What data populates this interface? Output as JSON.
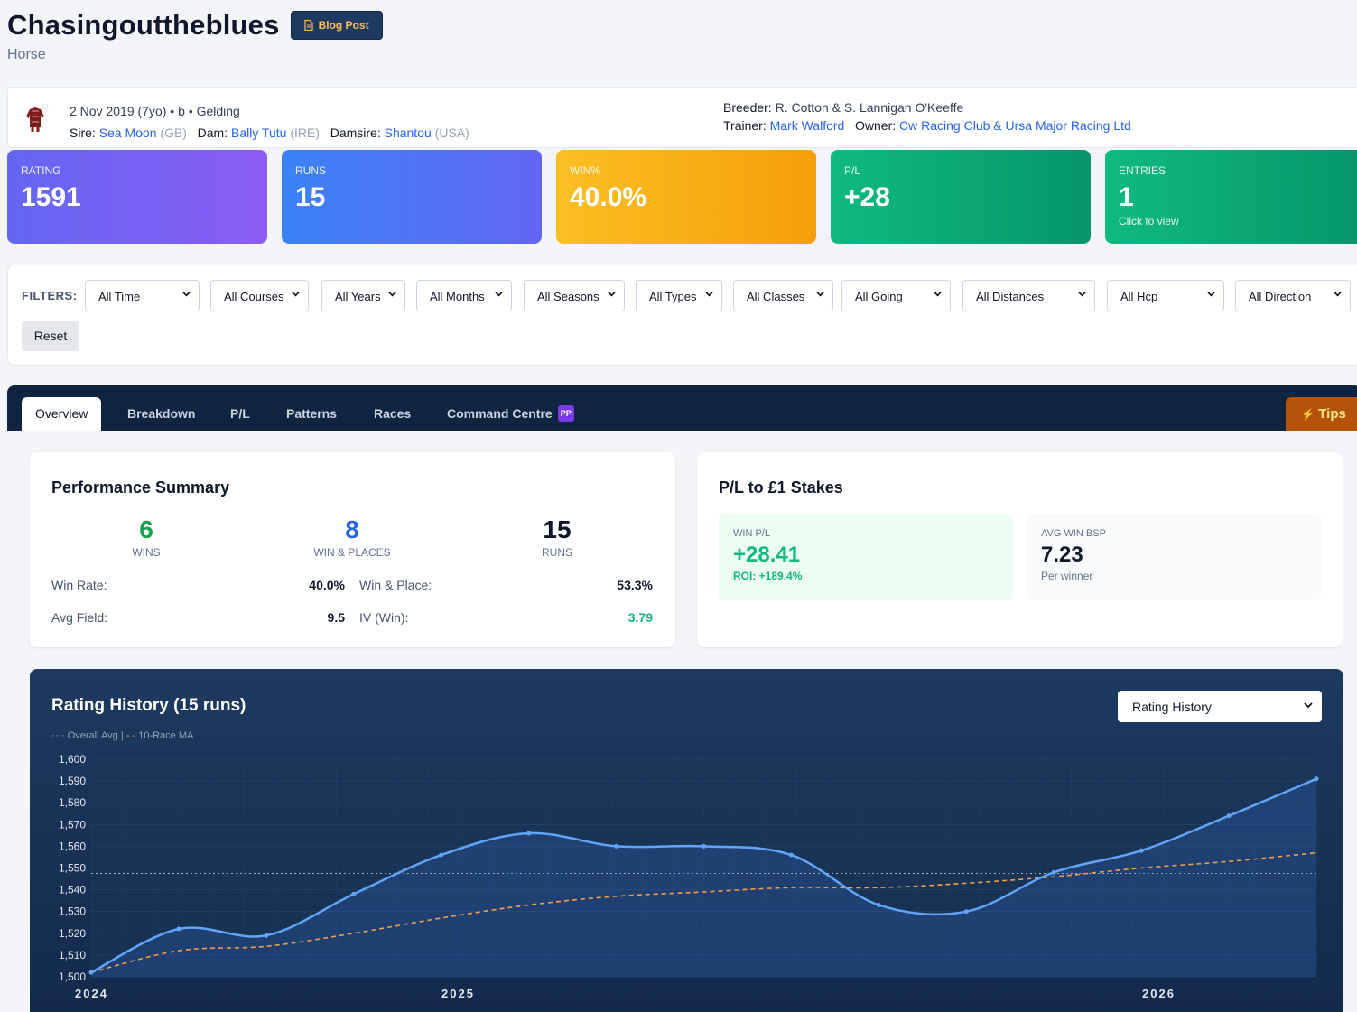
{
  "header": {
    "title": "Chasingouttheblues",
    "subtitle": "Horse",
    "blog_label": "Blog Post"
  },
  "info": {
    "dob": "2 Nov 2019 (7yo)",
    "color": "b",
    "sex": "Gelding",
    "sire_label": "Sire:",
    "sire": "Sea Moon",
    "sire_country": "(GB)",
    "dam_label": "Dam:",
    "dam": "Bally Tutu",
    "dam_country": "(IRE)",
    "damsire_label": "Damsire:",
    "damsire": "Shantou",
    "damsire_country": "(USA)",
    "breeder_label": "Breeder:",
    "breeder": "R. Cotton & S. Lannigan O'Keeffe",
    "trainer_label": "Trainer:",
    "trainer": "Mark Walford",
    "owner_label": "Owner:",
    "owner": "Cw Racing Club & Ursa Major Racing Ltd"
  },
  "stats": [
    {
      "label": "RATING",
      "value": "1591"
    },
    {
      "label": "RUNS",
      "value": "15"
    },
    {
      "label": "WIN%",
      "value": "40.0%"
    },
    {
      "label": "P/L",
      "value": "+28"
    },
    {
      "label": "ENTRIES",
      "value": "1",
      "sub": "Click to view"
    }
  ],
  "filters": {
    "label": "FILTERS:",
    "selects": [
      "All Time",
      "All Courses",
      "All Years",
      "All Months",
      "All Seasons",
      "All Types",
      "All Classes",
      "All Going",
      "All Distances",
      "All Hcp",
      "All Direction"
    ],
    "reset": "Reset"
  },
  "tabs": [
    "Overview",
    "Breakdown",
    "P/L",
    "Patterns",
    "Races",
    "Command Centre"
  ],
  "tab_badge": "PP",
  "tips_label": "Tips",
  "performance": {
    "title": "Performance Summary",
    "wins": "6",
    "wins_label": "WINS",
    "places": "8",
    "places_label": "WIN & PLACES",
    "runs": "15",
    "runs_label": "RUNS",
    "win_rate_label": "Win Rate:",
    "win_rate": "40.0%",
    "win_place_label": "Win & Place:",
    "win_place": "53.3%",
    "avg_field_label": "Avg Field:",
    "avg_field": "9.5",
    "iv_label": "IV (Win):",
    "iv": "3.79"
  },
  "pl": {
    "title": "P/L to £1 Stakes",
    "win_pl_label": "WIN P/L",
    "win_pl": "+28.41",
    "roi": "ROI: +189.4%",
    "avg_bsp_label": "AVG WIN BSP",
    "avg_bsp": "7.23",
    "avg_bsp_sub": "Per winner"
  },
  "chart_header": {
    "title": "Rating History (15 runs)",
    "selector": "Rating History",
    "legend_avg": "Overall Avg",
    "legend_sep": "|",
    "legend_ma": "10-Race MA"
  },
  "chart_data": {
    "type": "line",
    "title": "Rating History (15 runs)",
    "ylim": [
      1500,
      1600
    ],
    "y_ticks": [
      "1,600",
      "1,590",
      "1,580",
      "1,570",
      "1,560",
      "1,550",
      "1,540",
      "1,530",
      "1,520",
      "1,510",
      "1,500"
    ],
    "x_ticks": [
      "2024",
      "2025",
      "2026"
    ],
    "series": [
      {
        "name": "Rating",
        "values": [
          1502,
          1522,
          1519,
          1538,
          1556,
          1566,
          1560,
          1560,
          1556,
          1533,
          1530,
          1548,
          1558,
          1574,
          1591
        ],
        "color": "#60a5fa"
      },
      {
        "name": "10-Race MA",
        "values": [
          1502,
          1512,
          1514,
          1520,
          1527,
          1533,
          1537,
          1539,
          1541,
          1541,
          1543,
          1546,
          1550,
          1553,
          1557
        ],
        "color": "#f59e4b"
      }
    ],
    "overall_avg": 1547.5,
    "grid": true
  }
}
